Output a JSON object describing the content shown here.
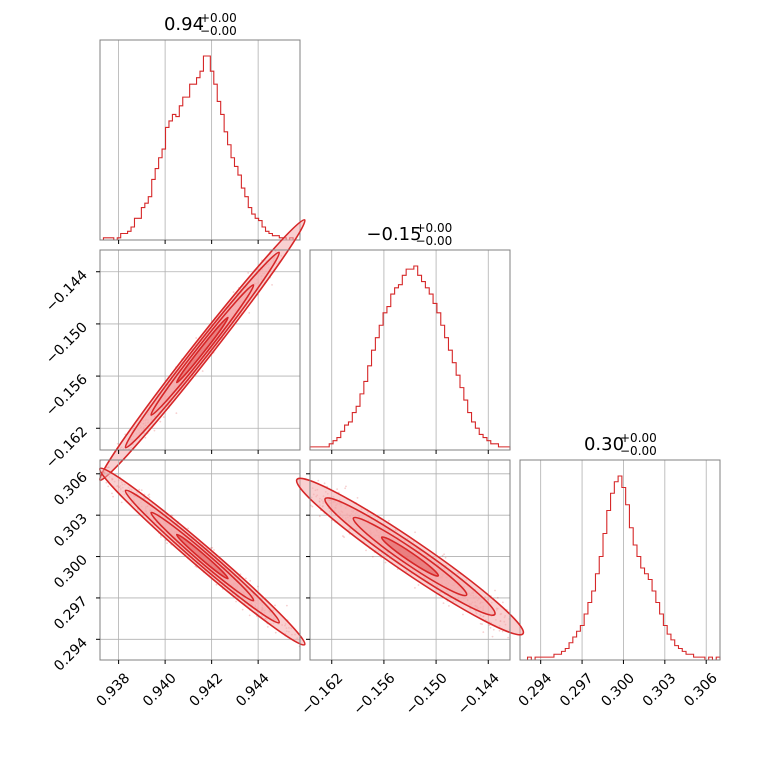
{
  "chart_data": {
    "type": "corner",
    "color": "#d62728",
    "fill_color": "#f4a9ab",
    "grid": true,
    "parameters": [
      {
        "title": "0.94",
        "err_plus": "+0.00",
        "err_minus": "−0.00",
        "xlim": [
          0.9372,
          0.9458
        ],
        "ticks": [
          0.938,
          0.94,
          0.942,
          0.944
        ],
        "tick_labels": [
          "0.938",
          "0.940",
          "0.942",
          "0.944"
        ]
      },
      {
        "title": "−0.15",
        "err_plus": "+0.00",
        "err_minus": "−0.00",
        "xlim": [
          -0.1645,
          -0.1415
        ],
        "ticks": [
          -0.162,
          -0.156,
          -0.15,
          -0.144
        ],
        "tick_labels": [
          "−0.162",
          "−0.156",
          "−0.150",
          "−0.144"
        ]
      },
      {
        "title": "0.30",
        "err_plus": "+0.00",
        "err_minus": "−0.00",
        "xlim": [
          0.2925,
          0.307
        ],
        "ticks": [
          0.294,
          0.297,
          0.3,
          0.303,
          0.306
        ],
        "tick_labels": [
          "0.294",
          "0.297",
          "0.300",
          "0.303",
          "0.306"
        ]
      }
    ],
    "histograms": [
      {
        "param": 0,
        "bin_edges": [
          0.9372,
          0.9458
        ],
        "counts": [
          0,
          1,
          1,
          1,
          0,
          1,
          3,
          3,
          4,
          6,
          10,
          10,
          15,
          17,
          20,
          28,
          33,
          38,
          42,
          52,
          55,
          58,
          57,
          62,
          66,
          66,
          72,
          72,
          75,
          78,
          85,
          85,
          78,
          72,
          64,
          58,
          50,
          44,
          38,
          34,
          30,
          24,
          20,
          15,
          12,
          10,
          9,
          6,
          4,
          3,
          2,
          2,
          1,
          1,
          0,
          1,
          0,
          0
        ]
      },
      {
        "param": 1,
        "bin_edges": [
          -0.1645,
          -0.1415
        ],
        "counts": [
          1,
          1,
          1,
          1,
          1,
          2,
          3,
          4,
          6,
          8,
          9,
          12,
          14,
          18,
          22,
          27,
          32,
          36,
          40,
          44,
          46,
          50,
          52,
          53,
          56,
          58,
          58,
          59,
          56,
          54,
          52,
          50,
          47,
          44,
          40,
          36,
          32,
          28,
          24,
          20,
          16,
          12,
          9,
          7,
          5,
          4,
          3,
          2,
          2,
          1,
          1,
          1
        ]
      },
      {
        "param": 2,
        "bin_edges": [
          0.2925,
          0.307
        ],
        "counts": [
          0,
          0,
          1,
          0,
          1,
          1,
          1,
          1,
          1,
          2,
          2,
          3,
          4,
          6,
          8,
          10,
          12,
          16,
          20,
          24,
          30,
          36,
          44,
          52,
          58,
          62,
          64,
          60,
          54,
          46,
          40,
          36,
          32,
          30,
          28,
          24,
          20,
          16,
          12,
          9,
          7,
          5,
          4,
          3,
          2,
          2,
          1,
          1,
          1,
          0,
          1,
          0,
          1
        ]
      }
    ],
    "pairs": [
      {
        "x_param": 0,
        "y_param": 1,
        "center": [
          0.9416,
          -0.153
        ],
        "slope": 3.4,
        "sigma_major": 0.0022,
        "sigma_minor_y": 0.0009
      },
      {
        "x_param": 0,
        "y_param": 2,
        "center": [
          0.9416,
          0.3
        ],
        "slope": -1.45,
        "sigma_major": 0.0022,
        "sigma_minor_y": 0.0005
      },
      {
        "x_param": 1,
        "y_param": 2,
        "center": [
          -0.153,
          0.3
        ],
        "slope": -0.43,
        "sigma_major": 0.0065,
        "sigma_minor_y": 0.0007
      }
    ]
  }
}
